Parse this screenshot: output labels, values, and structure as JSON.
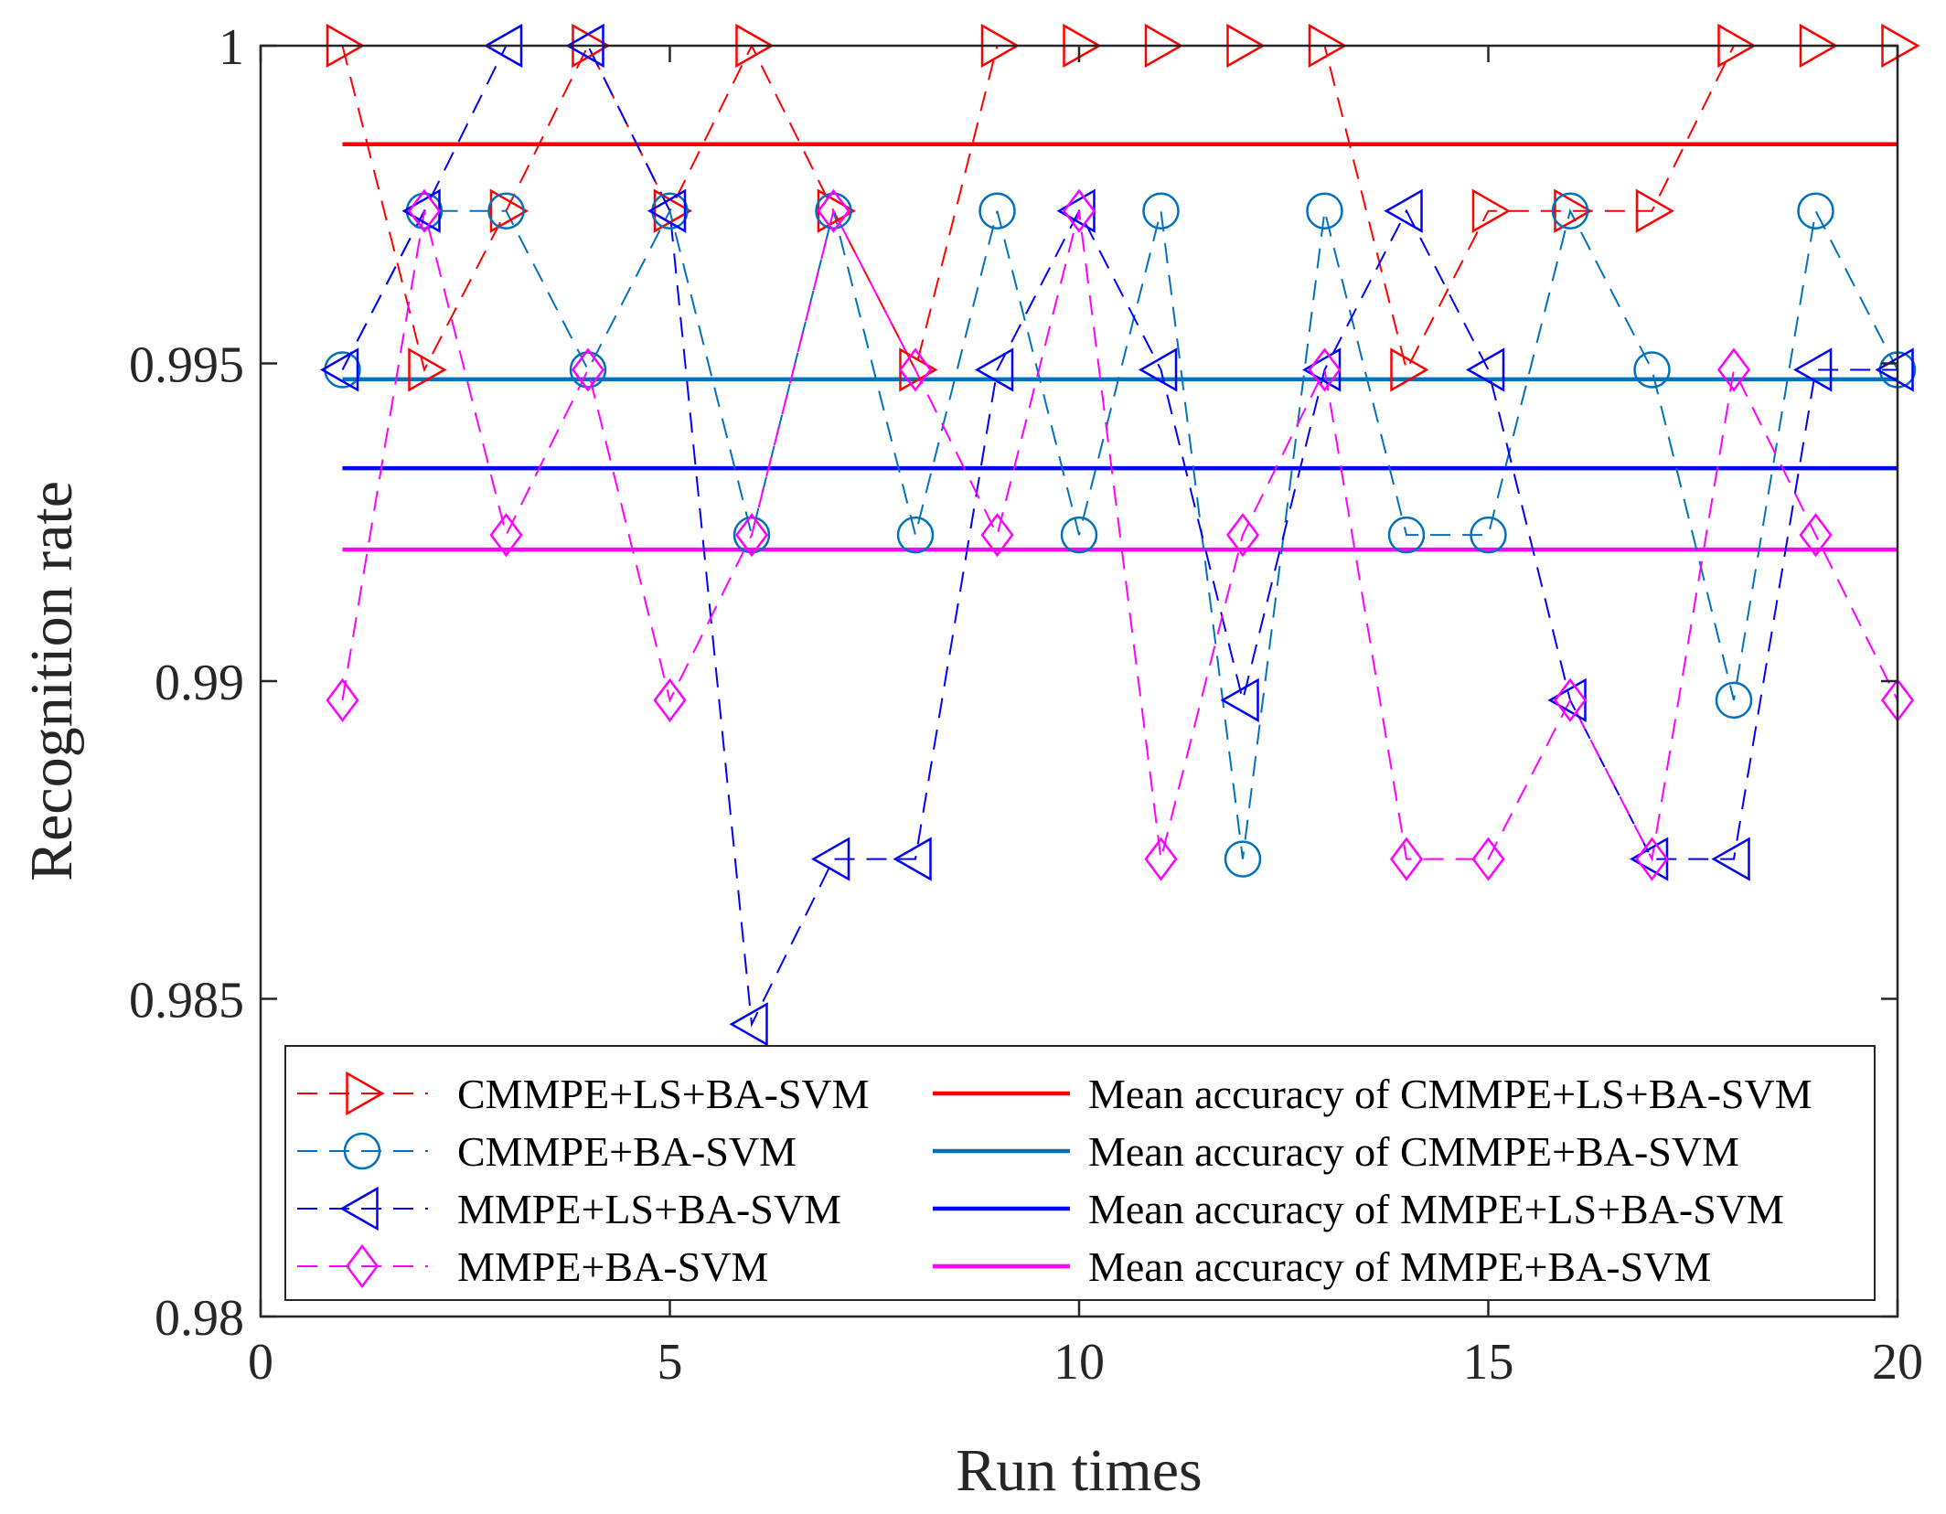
{
  "chart_data": {
    "type": "line",
    "title": "",
    "xlabel": "Run times",
    "ylabel": "Recognition rate",
    "xlim": [
      0,
      20
    ],
    "ylim": [
      0.98,
      1.0
    ],
    "x_ticks": [
      0,
      5,
      10,
      15,
      20
    ],
    "x_tick_labels": [
      "0",
      "5",
      "10",
      "15",
      "20"
    ],
    "y_ticks": [
      0.98,
      0.985,
      0.99,
      0.995,
      1.0
    ],
    "y_tick_labels": [
      "0.98",
      "0.985",
      "0.99",
      "0.995",
      "1"
    ],
    "x": [
      1,
      2,
      3,
      4,
      5,
      6,
      7,
      8,
      9,
      10,
      11,
      12,
      13,
      14,
      15,
      16,
      17,
      18,
      19,
      20
    ],
    "series": [
      {
        "name": "CMMPE+LS+BA-SVM",
        "color": "#ff0000",
        "marker": "triangle-right",
        "values": [
          1.0,
          0.9949,
          0.9974,
          1.0,
          0.9974,
          1.0,
          0.9974,
          0.9949,
          1.0,
          1.0,
          1.0,
          1.0,
          1.0,
          0.9949,
          0.9974,
          0.9974,
          0.9974,
          1.0,
          1.0,
          1.0
        ]
      },
      {
        "name": "CMMPE+BA-SVM",
        "color": "#0072bd",
        "marker": "circle",
        "values": [
          0.9949,
          0.9974,
          0.9974,
          0.9949,
          0.9974,
          0.9923,
          0.9974,
          0.9923,
          0.9974,
          0.9923,
          0.9974,
          0.9872,
          0.9974,
          0.9923,
          0.9923,
          0.9974,
          0.9949,
          0.9897,
          0.9974,
          0.9949
        ]
      },
      {
        "name": "MMPE+LS+BA-SVM",
        "color": "#0000ff",
        "marker": "triangle-left",
        "values": [
          0.9949,
          0.9974,
          1.0,
          1.0,
          0.9974,
          0.9846,
          0.9872,
          0.9872,
          0.9949,
          0.9974,
          0.9949,
          0.9897,
          0.9949,
          0.9974,
          0.9949,
          0.9897,
          0.9872,
          0.9872,
          0.9949,
          0.9949
        ]
      },
      {
        "name": "MMPE+BA-SVM",
        "color": "#ff00ff",
        "marker": "diamond",
        "values": [
          0.9897,
          0.9974,
          0.9923,
          0.9949,
          0.9897,
          0.9923,
          0.9974,
          0.9949,
          0.9923,
          0.9974,
          0.9872,
          0.9923,
          0.9949,
          0.9872,
          0.9872,
          0.9897,
          0.9872,
          0.9949,
          0.9923,
          0.9897
        ]
      }
    ],
    "mean_lines": [
      {
        "name": "Mean accuracy of CMMPE+LS+BA-SVM",
        "color": "#ff0000",
        "value": 0.99845,
        "x_range": [
          1,
          20
        ]
      },
      {
        "name": "Mean accuracy of CMMPE+BA-SVM",
        "color": "#0072bd",
        "value": 0.99475,
        "x_range": [
          1,
          20
        ]
      },
      {
        "name": "Mean accuracy of MMPE+LS+BA-SVM",
        "color": "#0000ff",
        "value": 0.99335,
        "x_range": [
          1,
          20
        ]
      },
      {
        "name": "Mean accuracy of MMPE+BA-SVM",
        "color": "#ff00ff",
        "value": 0.99207,
        "x_range": [
          1,
          20
        ]
      }
    ],
    "legend_position": "bottom-center",
    "grid": false
  }
}
